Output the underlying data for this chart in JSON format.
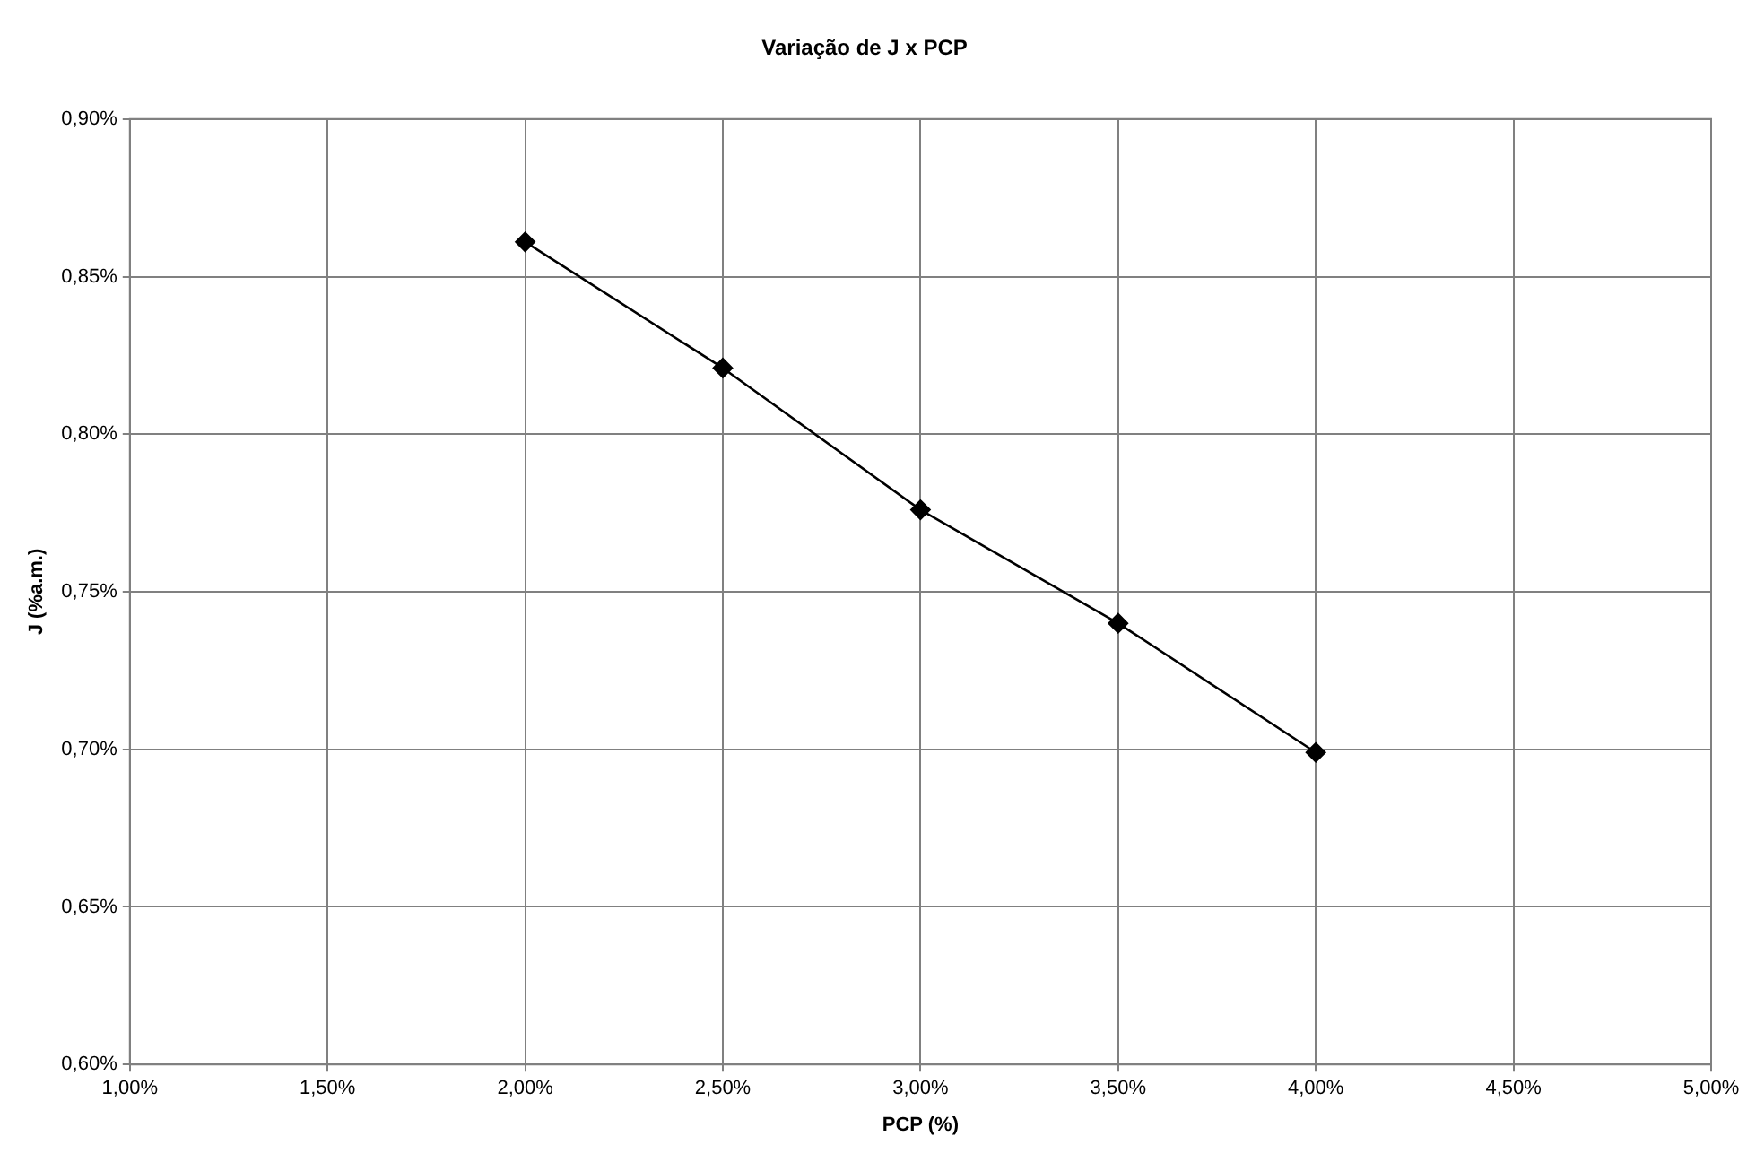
{
  "chart_data": {
    "type": "line",
    "title": "Variação de J x PCP",
    "xlabel": "PCP (%)",
    "ylabel": "J (%a.m.)",
    "x": [
      2.0,
      2.5,
      3.0,
      3.5,
      4.0
    ],
    "series": [
      {
        "color": "#000000",
        "values": [
          0.861,
          0.821,
          0.776,
          0.74,
          0.699
        ]
      }
    ],
    "xlim": [
      1,
      5
    ],
    "xticks": [
      {
        "value": 1,
        "label": "1,00%"
      },
      {
        "value": 1.5,
        "label": "1,50%"
      },
      {
        "value": 2,
        "label": "2,00%"
      },
      {
        "value": 2.5,
        "label": "2,50%"
      },
      {
        "value": 3,
        "label": "3,00%"
      },
      {
        "value": 3.5,
        "label": "3,50%"
      },
      {
        "value": 4,
        "label": "4,00%"
      },
      {
        "value": 4.5,
        "label": "4,50%"
      },
      {
        "value": 5,
        "label": "5,00%"
      }
    ],
    "ylim": [
      0.6,
      0.9
    ],
    "yticks": [
      {
        "value": 0.6,
        "label": "0,60%"
      },
      {
        "value": 0.65,
        "label": "0,65%"
      },
      {
        "value": 0.7,
        "label": "0,70%"
      },
      {
        "value": 0.75,
        "label": "0,75%"
      },
      {
        "value": 0.8,
        "label": "0,80%"
      },
      {
        "value": 0.85,
        "label": "0,85%"
      },
      {
        "value": 0.9,
        "label": "0,90%"
      }
    ],
    "grid": true,
    "legend": false,
    "marker": "diamond",
    "line_style": "solid"
  }
}
